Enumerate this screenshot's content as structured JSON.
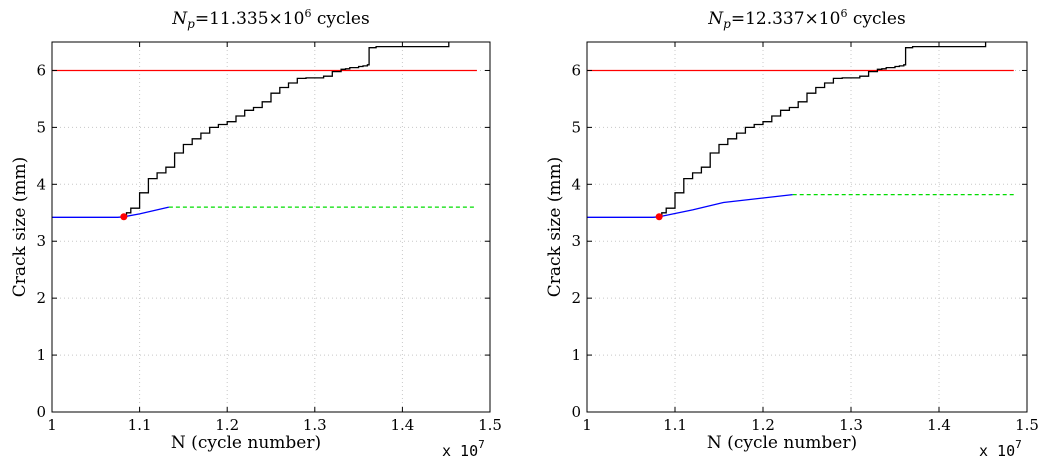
{
  "chart_data": [
    {
      "type": "line",
      "title": "N_p=11.335×10^6 cycles",
      "title_parts": {
        "symbol": "N",
        "subscript": "p",
        "mid": "=11.335×10",
        "exponent": "6",
        "suffix": " cycles"
      },
      "xlabel": "N (cycle number)",
      "ylabel": "Crack size (mm)",
      "x_multiplier": {
        "base": "x 10",
        "exp": "7"
      },
      "xlim": [
        1.0,
        1.5
      ],
      "ylim": [
        0,
        6.5
      ],
      "xticks": [
        "1",
        "1.1",
        "1.2",
        "1.3",
        "1.4",
        "1.5"
      ],
      "yticks": [
        "0",
        "1",
        "2",
        "3",
        "4",
        "5",
        "6"
      ],
      "grid": true,
      "series": [
        {
          "role": "threshold",
          "color": "#ff0000",
          "dash": "",
          "x": [
            1.0,
            1.485
          ],
          "y": [
            6.0,
            6.0
          ]
        },
        {
          "role": "measured",
          "color": "#000000",
          "dash": "",
          "x": [
            1.082,
            1.085,
            1.09,
            1.1,
            1.11,
            1.12,
            1.13,
            1.14,
            1.15,
            1.16,
            1.17,
            1.18,
            1.19,
            1.2,
            1.21,
            1.22,
            1.23,
            1.24,
            1.25,
            1.26,
            1.27,
            1.28,
            1.29,
            1.3,
            1.31,
            1.32,
            1.33,
            1.335,
            1.34,
            1.35,
            1.355,
            1.36,
            1.362,
            1.37,
            1.4,
            1.43,
            1.445,
            1.452,
            1.453
          ],
          "y": [
            3.43,
            3.5,
            3.58,
            3.85,
            4.1,
            4.2,
            4.3,
            4.55,
            4.7,
            4.8,
            4.9,
            5.0,
            5.05,
            5.1,
            5.2,
            5.3,
            5.35,
            5.45,
            5.6,
            5.7,
            5.78,
            5.86,
            5.87,
            5.87,
            5.9,
            5.98,
            6.02,
            6.03,
            6.05,
            6.07,
            6.08,
            6.1,
            6.4,
            6.42,
            6.42,
            6.42,
            6.42,
            6.42,
            6.5
          ]
        },
        {
          "role": "history",
          "color": "#0000ff",
          "dash": "",
          "x": [
            1.0,
            1.05,
            1.075,
            1.082
          ],
          "y": [
            3.42,
            3.42,
            3.42,
            3.43
          ]
        },
        {
          "role": "prediction",
          "color": "#0000ff",
          "dash": "",
          "x": [
            1.082,
            1.1,
            1.1335
          ],
          "y": [
            3.43,
            3.48,
            3.6
          ]
        },
        {
          "role": "extrapolation",
          "color": "#00dd00",
          "dash": "4 3",
          "x": [
            1.1335,
            1.485
          ],
          "y": [
            3.6,
            3.6
          ]
        },
        {
          "role": "current-point",
          "color": "#ff0000",
          "marker": "dot",
          "x": [
            1.082
          ],
          "y": [
            3.43
          ]
        }
      ]
    },
    {
      "type": "line",
      "title": "N_p=12.337×10^6 cycles",
      "title_parts": {
        "symbol": "N",
        "subscript": "p",
        "mid": "=12.337×10",
        "exponent": "6",
        "suffix": " cycles"
      },
      "xlabel": "N (cycle number)",
      "ylabel": "Crack size (mm)",
      "x_multiplier": {
        "base": "x 10",
        "exp": "7"
      },
      "xlim": [
        1.0,
        1.5
      ],
      "ylim": [
        0,
        6.5
      ],
      "xticks": [
        "1",
        "1.1",
        "1.2",
        "1.3",
        "1.4",
        "1.5"
      ],
      "yticks": [
        "0",
        "1",
        "2",
        "3",
        "4",
        "5",
        "6"
      ],
      "grid": true,
      "series": [
        {
          "role": "threshold",
          "color": "#ff0000",
          "dash": "",
          "x": [
            1.0,
            1.485
          ],
          "y": [
            6.0,
            6.0
          ]
        },
        {
          "role": "measured",
          "color": "#000000",
          "dash": "",
          "x": [
            1.082,
            1.085,
            1.09,
            1.1,
            1.11,
            1.12,
            1.13,
            1.14,
            1.15,
            1.16,
            1.17,
            1.18,
            1.19,
            1.2,
            1.21,
            1.22,
            1.23,
            1.24,
            1.25,
            1.26,
            1.27,
            1.28,
            1.29,
            1.3,
            1.31,
            1.32,
            1.33,
            1.335,
            1.34,
            1.35,
            1.355,
            1.36,
            1.362,
            1.37,
            1.4,
            1.43,
            1.445,
            1.452,
            1.453
          ],
          "y": [
            3.43,
            3.5,
            3.58,
            3.85,
            4.1,
            4.2,
            4.3,
            4.55,
            4.7,
            4.8,
            4.9,
            5.0,
            5.05,
            5.1,
            5.2,
            5.3,
            5.35,
            5.45,
            5.6,
            5.7,
            5.78,
            5.86,
            5.87,
            5.87,
            5.9,
            5.98,
            6.02,
            6.03,
            6.05,
            6.07,
            6.08,
            6.1,
            6.4,
            6.42,
            6.42,
            6.42,
            6.42,
            6.42,
            6.5
          ]
        },
        {
          "role": "history",
          "color": "#0000ff",
          "dash": "",
          "x": [
            1.0,
            1.05,
            1.075,
            1.082
          ],
          "y": [
            3.42,
            3.42,
            3.42,
            3.43
          ]
        },
        {
          "role": "prediction",
          "color": "#0000ff",
          "dash": "",
          "x": [
            1.082,
            1.12,
            1.155,
            1.2,
            1.2337
          ],
          "y": [
            3.43,
            3.55,
            3.68,
            3.76,
            3.82
          ]
        },
        {
          "role": "extrapolation",
          "color": "#00dd00",
          "dash": "4 3",
          "x": [
            1.2337,
            1.485
          ],
          "y": [
            3.82,
            3.82
          ]
        },
        {
          "role": "current-point",
          "color": "#ff0000",
          "marker": "dot",
          "x": [
            1.082
          ],
          "y": [
            3.43
          ]
        }
      ]
    }
  ]
}
